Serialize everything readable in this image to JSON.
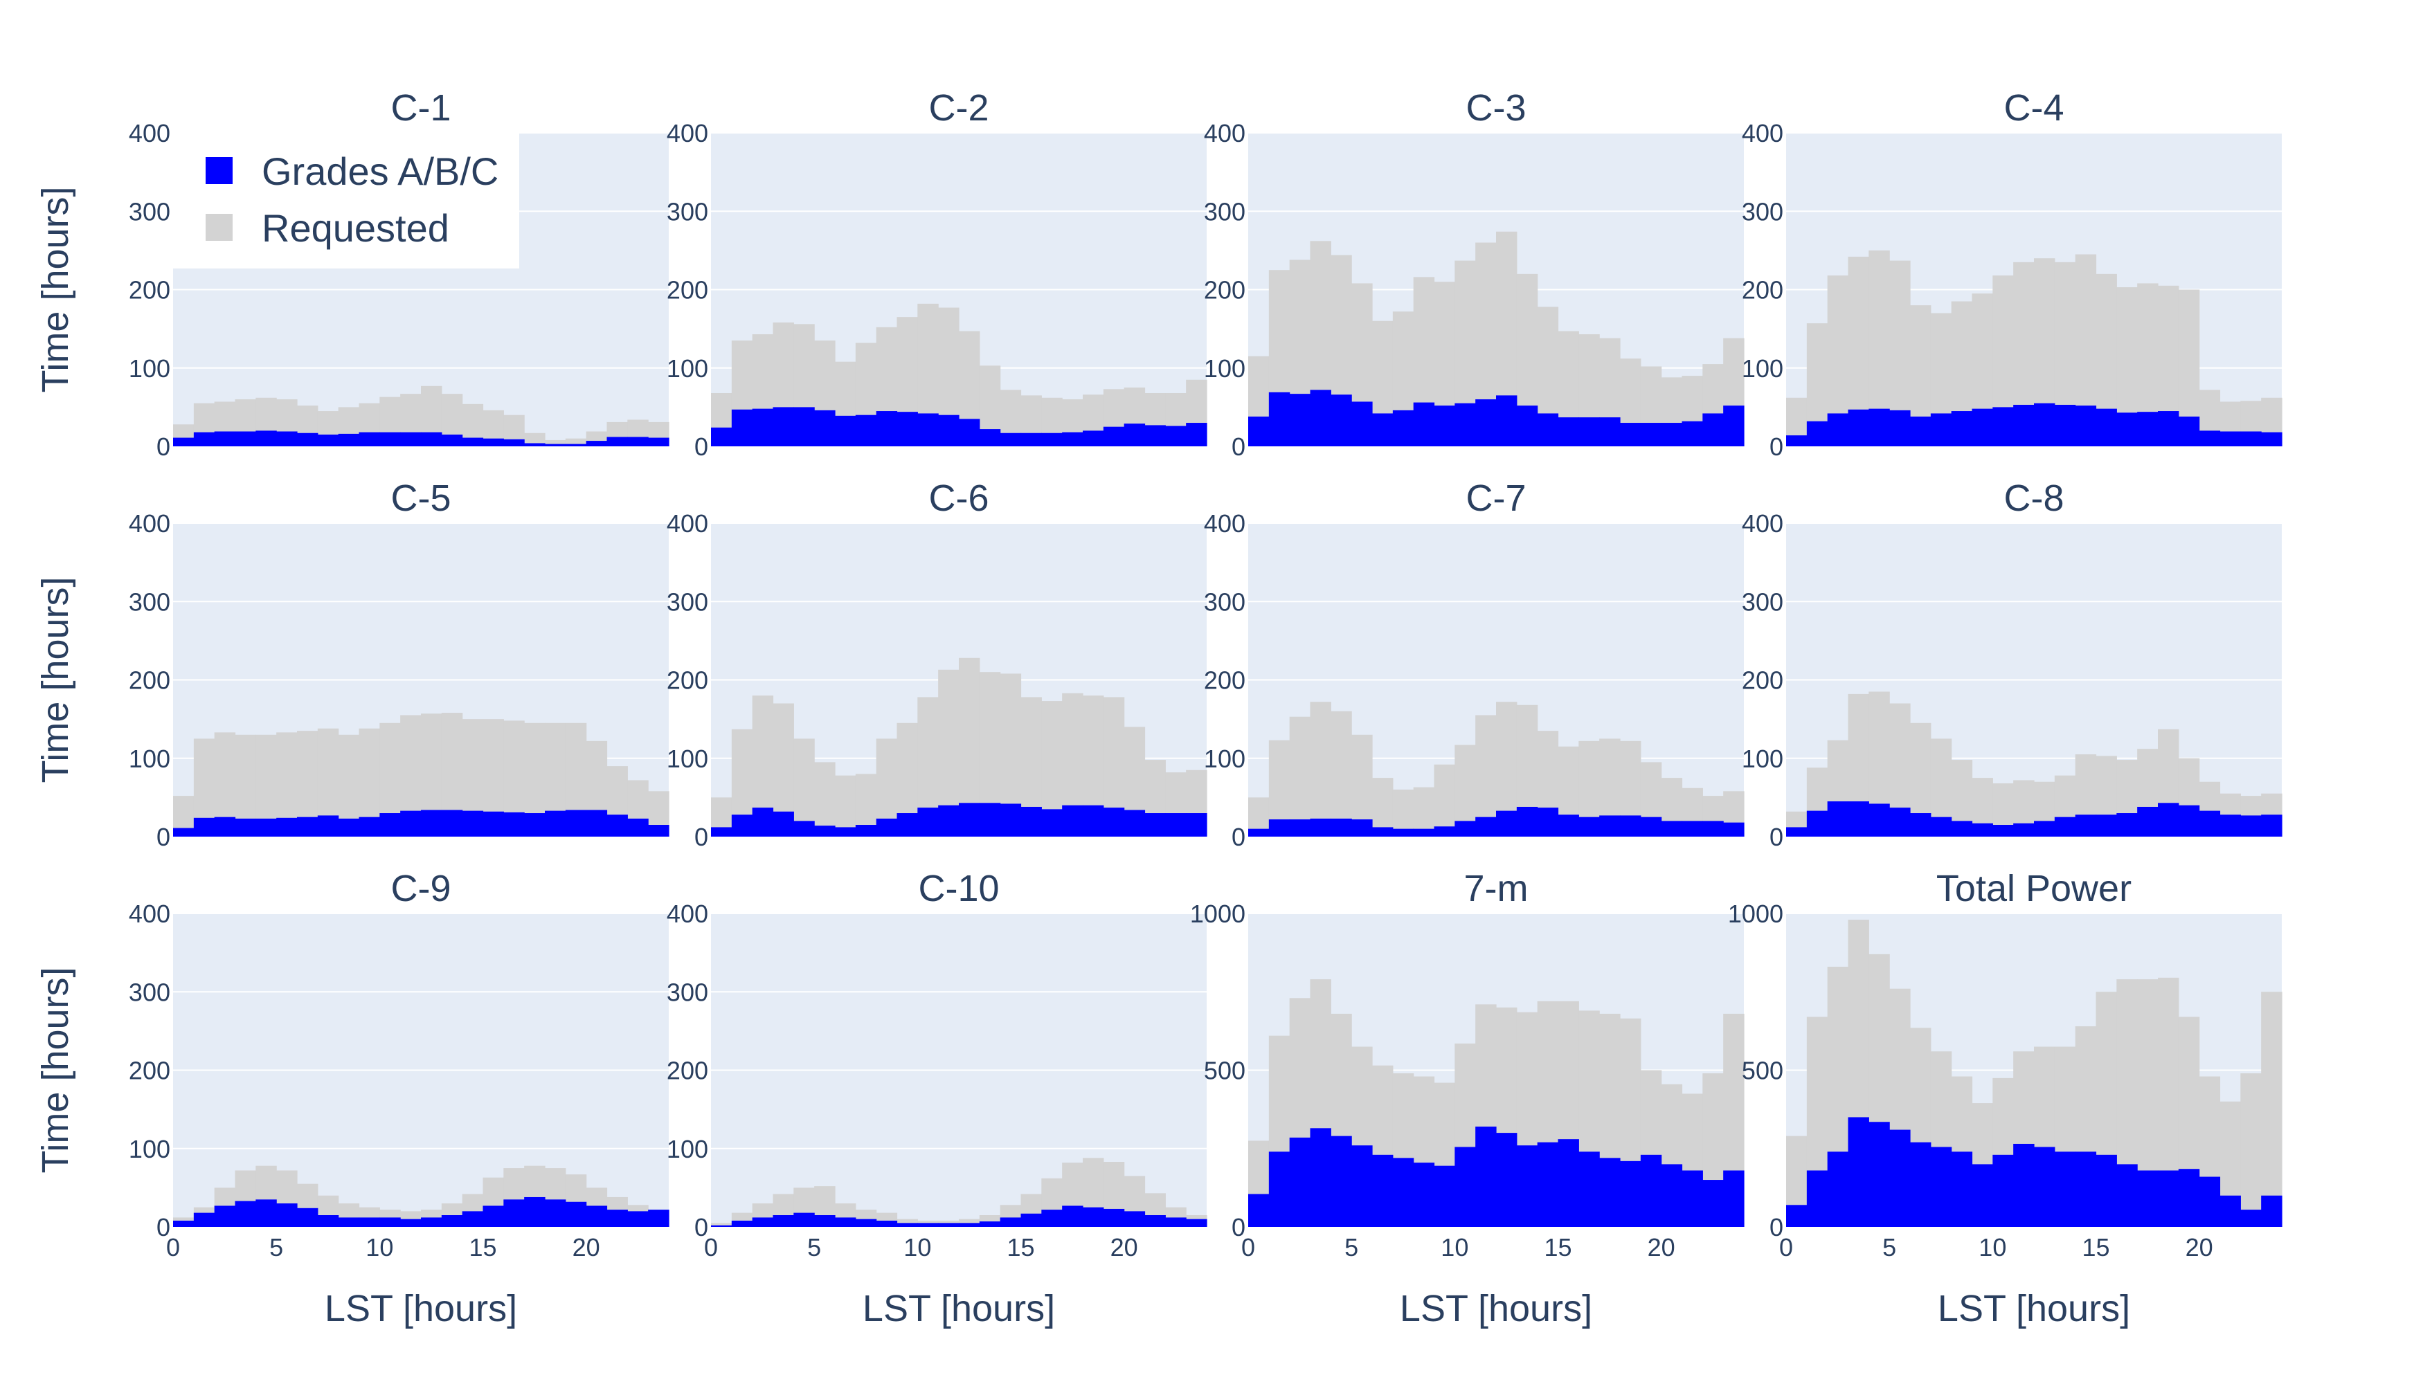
{
  "colors": {
    "grades": "#0000ff",
    "requested": "#d3d3d3",
    "plot_bg": "#e5ecf6",
    "grid": "#ffffff",
    "text": "#2a3f5f"
  },
  "legend": {
    "items": [
      {
        "label": "Grades A/B/C",
        "color": "#0000ff"
      },
      {
        "label": "Requested",
        "color": "#d3d3d3"
      }
    ],
    "position": "top-left of first panel"
  },
  "axes": {
    "ylabel": "Time [hours]",
    "xlabel": "LST [hours]",
    "x_ticks": [
      "0",
      "5",
      "10",
      "15",
      "20"
    ]
  },
  "chart_data": [
    {
      "type": "bar",
      "title": "C-1",
      "xlim": [
        0,
        24
      ],
      "ylim": [
        0,
        400
      ],
      "y_ticks": [
        "0",
        "100",
        "200",
        "300",
        "400"
      ],
      "series": [
        {
          "name": "Requested",
          "values": [
            28,
            55,
            57,
            60,
            62,
            60,
            52,
            45,
            50,
            55,
            63,
            67,
            77,
            67,
            54,
            46,
            40,
            17,
            8,
            10,
            19,
            31,
            34,
            31
          ]
        },
        {
          "name": "Grades A/B/C",
          "values": [
            11,
            18,
            19,
            19,
            20,
            19,
            17,
            15,
            16,
            18,
            18,
            18,
            18,
            15,
            11,
            10,
            9,
            4,
            3,
            3,
            7,
            12,
            12,
            11
          ]
        }
      ]
    },
    {
      "type": "bar",
      "title": "C-2",
      "xlim": [
        0,
        24
      ],
      "ylim": [
        0,
        400
      ],
      "y_ticks": [
        "0",
        "100",
        "200",
        "300",
        "400"
      ],
      "series": [
        {
          "name": "Requested",
          "values": [
            68,
            135,
            143,
            158,
            156,
            135,
            108,
            132,
            152,
            165,
            182,
            177,
            147,
            103,
            72,
            65,
            62,
            60,
            66,
            73,
            75,
            68,
            68,
            85
          ]
        },
        {
          "name": "Grades A/B/C",
          "values": [
            24,
            47,
            48,
            50,
            50,
            46,
            39,
            40,
            45,
            44,
            42,
            40,
            35,
            22,
            17,
            17,
            17,
            18,
            20,
            25,
            29,
            27,
            26,
            30
          ]
        }
      ]
    },
    {
      "type": "bar",
      "title": "C-3",
      "xlim": [
        0,
        24
      ],
      "ylim": [
        0,
        400
      ],
      "y_ticks": [
        "0",
        "100",
        "200",
        "300",
        "400"
      ],
      "series": [
        {
          "name": "Requested",
          "values": [
            115,
            225,
            238,
            262,
            244,
            208,
            160,
            172,
            216,
            210,
            237,
            260,
            274,
            220,
            178,
            147,
            143,
            138,
            112,
            102,
            88,
            90,
            105,
            138
          ]
        },
        {
          "name": "Grades A/B/C",
          "values": [
            38,
            69,
            67,
            72,
            66,
            57,
            42,
            46,
            56,
            52,
            55,
            60,
            65,
            52,
            42,
            37,
            37,
            37,
            30,
            30,
            30,
            32,
            42,
            52
          ]
        }
      ]
    },
    {
      "type": "bar",
      "title": "C-4",
      "xlim": [
        0,
        24
      ],
      "ylim": [
        0,
        400
      ],
      "y_ticks": [
        "0",
        "100",
        "200",
        "300",
        "400"
      ],
      "series": [
        {
          "name": "Requested",
          "values": [
            62,
            157,
            218,
            242,
            250,
            237,
            180,
            170,
            185,
            195,
            218,
            235,
            240,
            235,
            245,
            220,
            203,
            208,
            205,
            200,
            72,
            57,
            58,
            62
          ]
        },
        {
          "name": "Grades A/B/C",
          "values": [
            14,
            32,
            42,
            47,
            48,
            46,
            38,
            42,
            45,
            48,
            50,
            53,
            55,
            53,
            52,
            48,
            43,
            44,
            45,
            38,
            20,
            19,
            19,
            18
          ]
        }
      ]
    },
    {
      "type": "bar",
      "title": "C-5",
      "xlim": [
        0,
        24
      ],
      "ylim": [
        0,
        400
      ],
      "y_ticks": [
        "0",
        "100",
        "200",
        "300",
        "400"
      ],
      "series": [
        {
          "name": "Requested",
          "values": [
            52,
            125,
            133,
            130,
            130,
            133,
            135,
            138,
            130,
            138,
            145,
            155,
            157,
            158,
            150,
            150,
            148,
            145,
            145,
            145,
            122,
            90,
            72,
            58
          ]
        },
        {
          "name": "Grades A/B/C",
          "values": [
            11,
            24,
            25,
            23,
            23,
            24,
            25,
            27,
            23,
            25,
            30,
            33,
            34,
            34,
            33,
            32,
            31,
            30,
            33,
            34,
            34,
            28,
            23,
            15
          ]
        }
      ]
    },
    {
      "type": "bar",
      "title": "C-6",
      "xlim": [
        0,
        24
      ],
      "ylim": [
        0,
        400
      ],
      "y_ticks": [
        "0",
        "100",
        "200",
        "300",
        "400"
      ],
      "series": [
        {
          "name": "Requested",
          "values": [
            50,
            137,
            180,
            170,
            125,
            95,
            78,
            80,
            125,
            145,
            178,
            213,
            228,
            210,
            208,
            178,
            173,
            183,
            180,
            178,
            140,
            98,
            82,
            85
          ]
        },
        {
          "name": "Grades A/B/C",
          "values": [
            12,
            28,
            37,
            32,
            20,
            14,
            12,
            15,
            23,
            30,
            37,
            40,
            43,
            43,
            42,
            38,
            35,
            40,
            40,
            37,
            34,
            30,
            30,
            30
          ]
        }
      ]
    },
    {
      "type": "bar",
      "title": "C-7",
      "xlim": [
        0,
        24
      ],
      "ylim": [
        0,
        400
      ],
      "y_ticks": [
        "0",
        "100",
        "200",
        "300",
        "400"
      ],
      "series": [
        {
          "name": "Requested",
          "values": [
            50,
            123,
            153,
            172,
            160,
            130,
            75,
            60,
            63,
            92,
            117,
            155,
            172,
            168,
            135,
            115,
            122,
            125,
            122,
            95,
            75,
            62,
            52,
            58
          ]
        },
        {
          "name": "Grades A/B/C",
          "values": [
            10,
            22,
            22,
            23,
            23,
            22,
            12,
            10,
            10,
            13,
            20,
            25,
            33,
            38,
            37,
            28,
            25,
            27,
            27,
            25,
            20,
            20,
            20,
            18
          ]
        }
      ]
    },
    {
      "type": "bar",
      "title": "C-8",
      "xlim": [
        0,
        24
      ],
      "ylim": [
        0,
        400
      ],
      "y_ticks": [
        "0",
        "100",
        "200",
        "300",
        "400"
      ],
      "series": [
        {
          "name": "Requested",
          "values": [
            32,
            88,
            123,
            182,
            185,
            170,
            145,
            125,
            98,
            75,
            68,
            72,
            70,
            78,
            105,
            103,
            98,
            112,
            137,
            100,
            70,
            55,
            52,
            55
          ]
        },
        {
          "name": "Grades A/B/C",
          "values": [
            12,
            33,
            45,
            45,
            42,
            37,
            30,
            25,
            20,
            17,
            15,
            17,
            20,
            25,
            28,
            28,
            30,
            38,
            43,
            40,
            33,
            28,
            27,
            28
          ]
        }
      ]
    },
    {
      "type": "bar",
      "title": "C-9",
      "xlim": [
        0,
        24
      ],
      "ylim": [
        0,
        400
      ],
      "y_ticks": [
        "0",
        "100",
        "200",
        "300",
        "400"
      ],
      "series": [
        {
          "name": "Requested",
          "values": [
            12,
            25,
            50,
            72,
            78,
            72,
            55,
            40,
            30,
            25,
            22,
            20,
            22,
            30,
            42,
            63,
            75,
            78,
            75,
            67,
            50,
            38,
            28,
            22
          ]
        },
        {
          "name": "Grades A/B/C",
          "values": [
            8,
            18,
            27,
            33,
            35,
            30,
            24,
            15,
            12,
            12,
            12,
            10,
            12,
            15,
            20,
            27,
            35,
            38,
            35,
            32,
            27,
            22,
            20,
            22
          ]
        }
      ]
    },
    {
      "type": "bar",
      "title": "C-10",
      "xlim": [
        0,
        24
      ],
      "ylim": [
        0,
        400
      ],
      "y_ticks": [
        "0",
        "100",
        "200",
        "300",
        "400"
      ],
      "series": [
        {
          "name": "Requested",
          "values": [
            5,
            18,
            30,
            42,
            50,
            52,
            30,
            22,
            18,
            10,
            8,
            8,
            10,
            15,
            28,
            42,
            62,
            82,
            88,
            83,
            65,
            43,
            25,
            15
          ]
        },
        {
          "name": "Grades A/B/C",
          "values": [
            2,
            8,
            12,
            15,
            18,
            15,
            12,
            10,
            8,
            5,
            5,
            5,
            5,
            7,
            12,
            17,
            22,
            27,
            25,
            23,
            20,
            15,
            12,
            10
          ]
        }
      ]
    },
    {
      "type": "bar",
      "title": "7-m",
      "xlim": [
        0,
        24
      ],
      "ylim": [
        0,
        1000
      ],
      "y_ticks": [
        "0",
        "500",
        "1000"
      ],
      "series": [
        {
          "name": "Requested",
          "values": [
            275,
            610,
            730,
            790,
            680,
            575,
            515,
            490,
            480,
            460,
            585,
            710,
            700,
            685,
            720,
            720,
            690,
            680,
            665,
            500,
            455,
            425,
            490,
            680
          ]
        },
        {
          "name": "Grades A/B/C",
          "values": [
            105,
            240,
            285,
            315,
            290,
            260,
            230,
            220,
            205,
            195,
            255,
            320,
            300,
            260,
            270,
            280,
            240,
            220,
            210,
            230,
            200,
            180,
            150,
            180
          ]
        }
      ]
    },
    {
      "type": "bar",
      "title": "Total Power",
      "xlim": [
        0,
        24
      ],
      "ylim": [
        0,
        1000
      ],
      "y_ticks": [
        "0",
        "500",
        "1000"
      ],
      "series": [
        {
          "name": "Requested",
          "values": [
            290,
            670,
            830,
            980,
            870,
            760,
            635,
            560,
            480,
            395,
            475,
            560,
            575,
            575,
            640,
            750,
            790,
            790,
            795,
            670,
            480,
            400,
            490,
            750
          ]
        },
        {
          "name": "Grades A/B/C",
          "values": [
            70,
            180,
            240,
            350,
            335,
            310,
            270,
            255,
            240,
            200,
            230,
            265,
            255,
            240,
            240,
            230,
            200,
            180,
            180,
            185,
            160,
            100,
            55,
            100
          ]
        }
      ]
    }
  ]
}
